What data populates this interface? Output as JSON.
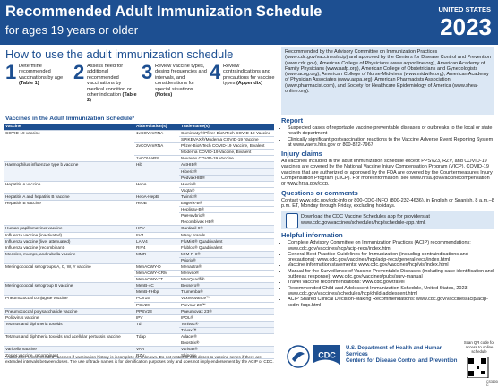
{
  "header": {
    "title": "Recommended Adult Immunization Schedule",
    "subtitle": "for ages 19 years or older",
    "country": "UNITED STATES",
    "year": "2023"
  },
  "how_to": {
    "title": "How to use the adult immunization schedule",
    "steps": [
      {
        "number": "1",
        "text": "Determine recommended vaccinations by age",
        "ref": "(Table 1)"
      },
      {
        "number": "2",
        "text": "Assess need for additional recommended vaccinations by medical condition or other indication",
        "ref": "(Table 2)"
      },
      {
        "number": "3",
        "text": "Review vaccine types, dosing frequencies and intervals, and considerations for special situations",
        "ref": "(Notes)"
      },
      {
        "number": "4",
        "text": "Review contraindications and precautions for vaccine types",
        "ref": "(Appendix)"
      }
    ]
  },
  "table": {
    "title": "Vaccines in the Adult Immunization Schedule*",
    "columns": [
      "Vaccine",
      "Abbreviation(s)",
      "Trade name(s)"
    ],
    "groups": [
      {
        "vaccine": "COVID-19 vaccine",
        "abbreviations": [
          {
            "name": "1vCOV-mRNA",
            "trade_names": [
              "Comirnaty®/Pfizer-BioNTech COVID-19 Vaccine",
              "SPIKEVAX®/Moderna COVID-19 Vaccine"
            ]
          },
          {
            "name": "2vCOV-mRNA",
            "trade_names": [
              "Pfizer-BioNTech COVID-19 Vaccine, Bivalent",
              "Moderna COVID-19 Vaccine, Bivalent"
            ]
          },
          {
            "name": "1vCOV-aPS",
            "trade_names": [
              "Novavax COVID-19 Vaccine"
            ]
          }
        ]
      },
      {
        "vaccine": "Haemophilus influenzae type b vaccine",
        "abbreviations": [
          {
            "name": "Hib",
            "trade_names": [
              "ActHIB®",
              "Hiberix®",
              "PedvaxHIB®"
            ]
          }
        ]
      },
      {
        "vaccine": "Hepatitis A vaccine",
        "abbreviations": [
          {
            "name": "HepA",
            "trade_names": [
              "Havrix®",
              "Vaqta®"
            ]
          }
        ]
      },
      {
        "vaccine": "Hepatitis A and hepatitis B vaccine",
        "abbreviations": [
          {
            "name": "HepA-HepB",
            "trade_names": [
              "Twinrix®"
            ]
          }
        ]
      },
      {
        "vaccine": "Hepatitis B vaccine",
        "abbreviations": [
          {
            "name": "HepB",
            "trade_names": [
              "Engerix-B®",
              "Heplisav-B®",
              "PreHevbrio®",
              "Recombivax HB®"
            ]
          }
        ]
      },
      {
        "vaccine": "Human papillomavirus vaccine",
        "abbreviations": [
          {
            "name": "HPV",
            "trade_names": [
              "Gardasil 9®"
            ]
          }
        ]
      },
      {
        "vaccine": "Influenza vaccine (inactivated)",
        "abbreviations": [
          {
            "name": "IIV4",
            "trade_names": [
              "Many brands"
            ]
          }
        ]
      },
      {
        "vaccine": "Influenza vaccine (live, attenuated)",
        "abbreviations": [
          {
            "name": "LAIV4",
            "trade_names": [
              "FluMist® Quadrivalent"
            ]
          }
        ]
      },
      {
        "vaccine": "Influenza vaccine (recombinant)",
        "abbreviations": [
          {
            "name": "RIV4",
            "trade_names": [
              "Flublok® Quadrivalent"
            ]
          }
        ]
      },
      {
        "vaccine": "Measles, mumps, and rubella vaccine",
        "abbreviations": [
          {
            "name": "MMR",
            "trade_names": [
              "M-M-R II®",
              "Priorix®"
            ]
          }
        ]
      },
      {
        "vaccine": "Meningococcal serogroups A, C, W, Y vaccine",
        "abbreviations": [
          {
            "name": "MenACWY-D",
            "trade_names": [
              "Menactra®"
            ]
          },
          {
            "name": "MenACWY-CRM",
            "trade_names": [
              "Menveo®"
            ]
          },
          {
            "name": "MenACWY-TT",
            "trade_names": [
              "MenQuadfi®"
            ]
          }
        ]
      },
      {
        "vaccine": "Meningococcal serogroup B vaccine",
        "abbreviations": [
          {
            "name": "MenB-4C",
            "trade_names": [
              "Bexsero®"
            ]
          },
          {
            "name": "MenB-FHbp",
            "trade_names": [
              "Trumenba®"
            ]
          }
        ]
      },
      {
        "vaccine": "Pneumococcal conjugate vaccine",
        "abbreviations": [
          {
            "name": "PCV15",
            "trade_names": [
              "Vaxneuvance™"
            ]
          },
          {
            "name": "PCV20",
            "trade_names": [
              "Prevnar 20™"
            ]
          }
        ]
      },
      {
        "vaccine": "Pneumococcal polysaccharide vaccine",
        "abbreviations": [
          {
            "name": "PPSV23",
            "trade_names": [
              "Pneumovax 23®"
            ]
          }
        ]
      },
      {
        "vaccine": "Poliovirus vaccine",
        "abbreviations": [
          {
            "name": "IPV",
            "trade_names": [
              "IPOL®"
            ]
          }
        ]
      },
      {
        "vaccine": "Tetanus and diphtheria toxoids",
        "abbreviations": [
          {
            "name": "Td",
            "trade_names": [
              "Tenivac®",
              "Tdvax™"
            ]
          }
        ]
      },
      {
        "vaccine": "Tetanus and diphtheria toxoids and acellular pertussis vaccine",
        "abbreviations": [
          {
            "name": "Tdap",
            "trade_names": [
              "Adacel®",
              "Boostrix®"
            ]
          }
        ]
      },
      {
        "vaccine": "Varicella vaccine",
        "abbreviations": [
          {
            "name": "VAR",
            "trade_names": [
              "Varivax®"
            ]
          }
        ]
      },
      {
        "vaccine": "Zoster vaccine, recombinant",
        "abbreviations": [
          {
            "name": "RZV",
            "trade_names": [
              "Shingrix"
            ]
          }
        ]
      }
    ],
    "footnote": "*Administer recommended vaccines if vaccination history is incomplete or unknown. Do not restart or add doses to vaccine series if there are extended intervals between doses. The use of trade names is for identification purposes only and does not imply endorsement by the ACIP or CDC."
  },
  "approval": "Recommended by the Advisory Committee on Immunization Practices (www.cdc.gov/vaccines/acip) and approved by the Centers for Disease Control and Prevention (www.cdc.gov), American College of Physicians (www.acponline.org), American Academy of Family Physicians (www.aafp.org), American College of Obstetricians and Gynecologists (www.acog.org), American College of Nurse-Midwives (www.midwife.org), American Academy of Physician Associates (www.aapa.org), American Pharmacists Association (www.pharmacist.com), and Society for Healthcare Epidemiology of America (www.shea-online.org).",
  "report": {
    "title": "Report",
    "bullets": [
      "Suspected cases of reportable vaccine-preventable diseases or outbreaks to the local or state health department",
      "Clinically significant postvaccination reactions to the Vaccine Adverse Event Reporting System at www.vaers.hhs.gov or 800-822-7967"
    ]
  },
  "injury": {
    "title": "Injury claims",
    "text": "All vaccines included in the adult immunization schedule except PPSV23, RZV, and COVID-19 vaccines are covered by the National Vaccine Injury Compensation Program (VICP). COVID-19 vaccines that are authorized or approved by the FDA are covered by the Countermeasures Injury Compensation Program (CICP). For more information, see www.hrsa.gov/vaccinecompensation or www.hrsa.gov/cicp."
  },
  "questions": {
    "title": "Questions or comments",
    "text": "Contact www.cdc.gov/cdc-info or 800-CDC-INFO (800-232-4636), in English or Spanish, 8 a.m.–8 p.m. ET, Monday through Friday, excluding holidays."
  },
  "app": "Download the CDC Vaccine Schedules app for providers at www.cdc.gov/vaccines/schedules/hcp/schedule-app.html.",
  "helpful": {
    "title": "Helpful information",
    "bullets": [
      "Complete Advisory Committee on Immunization Practices (ACIP) recommendations: www.cdc.gov/vaccines/hcp/acip-recs/index.html",
      "General Best Practice Guidelines for Immunization (including contraindications and precautions): www.cdc.gov/vaccines/hcp/acip-recs/general-recs/index.html",
      "Vaccine information statements: www.cdc.gov/vaccines/hcp/vis/index.html",
      "Manual for the Surveillance of Vaccine-Preventable Diseases (including case identification and outbreak response): www.cdc.gov/vaccines/pubs/surv-manual",
      "Travel vaccine recommendations: www.cdc.gov/travel",
      "Recommended Child and Adolescent Immunization Schedule, United States, 2023: www.cdc.gov/vaccines/schedules/hcp/child-adolescent.html",
      "ACIP Shared Clinical Decision-Making Recommendations: www.cdc.gov/vaccines/acip/acip-scdm-faqs.html"
    ]
  },
  "footer": {
    "qr_text": "Scan QR code for access to online schedule",
    "hhs": "U.S. Department of Health and Human Services",
    "cdc_name": "Centers for Disease Control and Prevention",
    "cdc_logo": "CDC",
    "code": "CS310021-C"
  }
}
